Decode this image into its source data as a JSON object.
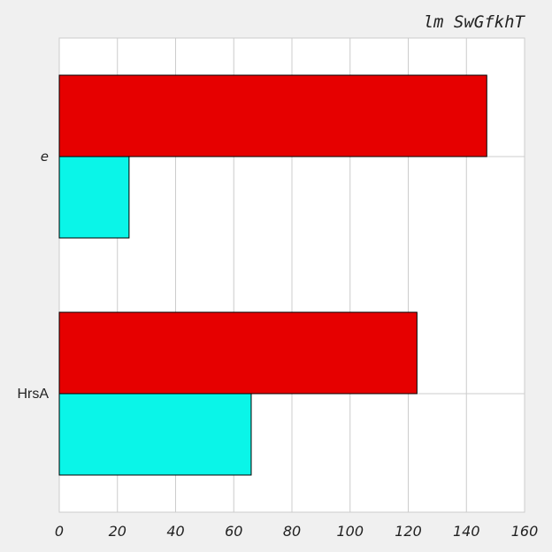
{
  "chart_data": {
    "type": "bar",
    "orientation": "horizontal",
    "title": "lm SwGfkhT",
    "categories": [
      "e",
      "HrsA"
    ],
    "series": [
      {
        "values": [
          147,
          123
        ],
        "color": "#e60000"
      },
      {
        "values": [
          24,
          66
        ],
        "color": "#0af5e8"
      }
    ],
    "xlim": [
      0,
      160
    ],
    "x_ticks": [
      "0",
      "20",
      "40",
      "60",
      "80",
      "100",
      "120",
      "140",
      "160"
    ],
    "grid": true,
    "background": "#f0f0f0",
    "plot_background": "#ffffff"
  }
}
